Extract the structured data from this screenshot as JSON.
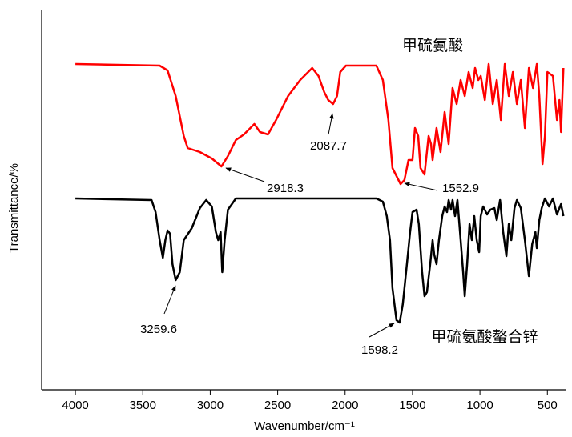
{
  "chart_data": {
    "type": "line",
    "xlabel": "Wavenumber/cm⁻¹",
    "ylabel": "Transmittance/%",
    "xlim": [
      4250,
      365
    ],
    "ylim": [
      0,
      95
    ],
    "xticks": [
      4000,
      3500,
      3000,
      2500,
      2000,
      1500,
      1000,
      500
    ],
    "annotations": [
      "2918.3",
      "2087.7",
      "1552.9",
      "3259.6",
      "1598.2"
    ],
    "series": [
      {
        "name": "甲硫氨酸",
        "color": "#ff0000",
        "x": [
          4000,
          3375,
          3316,
          3256,
          3196,
          3167,
          3077,
          2988,
          2917,
          2869,
          2810,
          2750,
          2673,
          2631,
          2572,
          2512,
          2423,
          2333,
          2244,
          2197,
          2155,
          2125,
          2089,
          2060,
          2036,
          1994,
          1768,
          1720,
          1679,
          1649,
          1589,
          1560,
          1530,
          1500,
          1482,
          1458,
          1441,
          1411,
          1381,
          1363,
          1351,
          1322,
          1292,
          1262,
          1232,
          1203,
          1173,
          1143,
          1113,
          1084,
          1054,
          1036,
          1012,
          994,
          964,
          935,
          905,
          875,
          845,
          816,
          786,
          756,
          726,
          697,
          667,
          637,
          607,
          578,
          560,
          536,
          518,
          500,
          459,
          429,
          411,
          399,
          381
        ],
        "values": [
          81.4,
          81.0,
          79.8,
          73.4,
          63.4,
          60.4,
          59.4,
          57.8,
          55.8,
          58.4,
          62.4,
          63.8,
          66.4,
          64.4,
          63.8,
          67.4,
          73.4,
          77.4,
          80.4,
          78.4,
          74.4,
          72.4,
          71.4,
          73.4,
          79.4,
          81.0,
          81.0,
          77.4,
          67.4,
          55.4,
          51.4,
          52.4,
          57.4,
          57.4,
          65.4,
          63.4,
          55.4,
          53.8,
          63.4,
          61.4,
          57.4,
          65.4,
          59.4,
          69.4,
          61.4,
          75.4,
          71.4,
          77.4,
          73.4,
          79.4,
          75.4,
          80.4,
          77.4,
          78.4,
          72.4,
          81.4,
          71.4,
          77.4,
          67.4,
          81.4,
          73.4,
          79.4,
          71.4,
          77.4,
          65.4,
          80.4,
          75.4,
          81.4,
          73.4,
          56.4,
          63.4,
          79.4,
          78.4,
          67.4,
          72.4,
          64.4,
          80.4
        ]
      },
      {
        "name": "甲硫氨酸螯合锌",
        "color": "#000000",
        "x": [
          4000,
          3435,
          3405,
          3375,
          3351,
          3333,
          3316,
          3298,
          3280,
          3256,
          3226,
          3196,
          3137,
          3077,
          3030,
          2988,
          2958,
          2941,
          2923,
          2911,
          2893,
          2869,
          2839,
          2810,
          1768,
          1720,
          1691,
          1667,
          1649,
          1619,
          1595,
          1572,
          1542,
          1518,
          1500,
          1470,
          1453,
          1429,
          1411,
          1393,
          1369,
          1351,
          1339,
          1322,
          1304,
          1280,
          1262,
          1244,
          1232,
          1214,
          1203,
          1185,
          1167,
          1143,
          1125,
          1113,
          1095,
          1077,
          1060,
          1042,
          1024,
          1006,
          994,
          976,
          947,
          923,
          893,
          875,
          851,
          828,
          804,
          786,
          768,
          744,
          726,
          697,
          667,
          637,
          613,
          589,
          578,
          560,
          542,
          518,
          488,
          459,
          429,
          399,
          381
        ],
        "values": [
          47.8,
          47.4,
          44.4,
          37.4,
          33.0,
          37.4,
          39.8,
          39.0,
          31.4,
          27.4,
          29.4,
          37.4,
          40.4,
          45.4,
          47.4,
          45.8,
          39.4,
          37.4,
          39.4,
          29.4,
          37.4,
          45.0,
          46.4,
          47.8,
          47.8,
          47.0,
          43.4,
          37.4,
          25.4,
          17.4,
          16.8,
          21.4,
          31.4,
          39.4,
          44.4,
          45.0,
          41.4,
          29.4,
          23.4,
          24.4,
          31.4,
          37.4,
          33.8,
          31.4,
          37.4,
          43.4,
          45.8,
          44.4,
          47.4,
          45.0,
          47.4,
          43.4,
          47.4,
          37.4,
          29.4,
          23.4,
          31.4,
          41.4,
          37.4,
          43.4,
          37.4,
          34.4,
          43.4,
          45.8,
          43.8,
          45.0,
          45.4,
          42.4,
          47.4,
          39.4,
          33.4,
          41.4,
          37.4,
          45.4,
          47.4,
          45.4,
          37.4,
          28.4,
          36.4,
          39.4,
          35.4,
          42.4,
          45.4,
          47.8,
          45.8,
          47.8,
          43.8,
          46.4,
          43.4
        ]
      }
    ]
  }
}
